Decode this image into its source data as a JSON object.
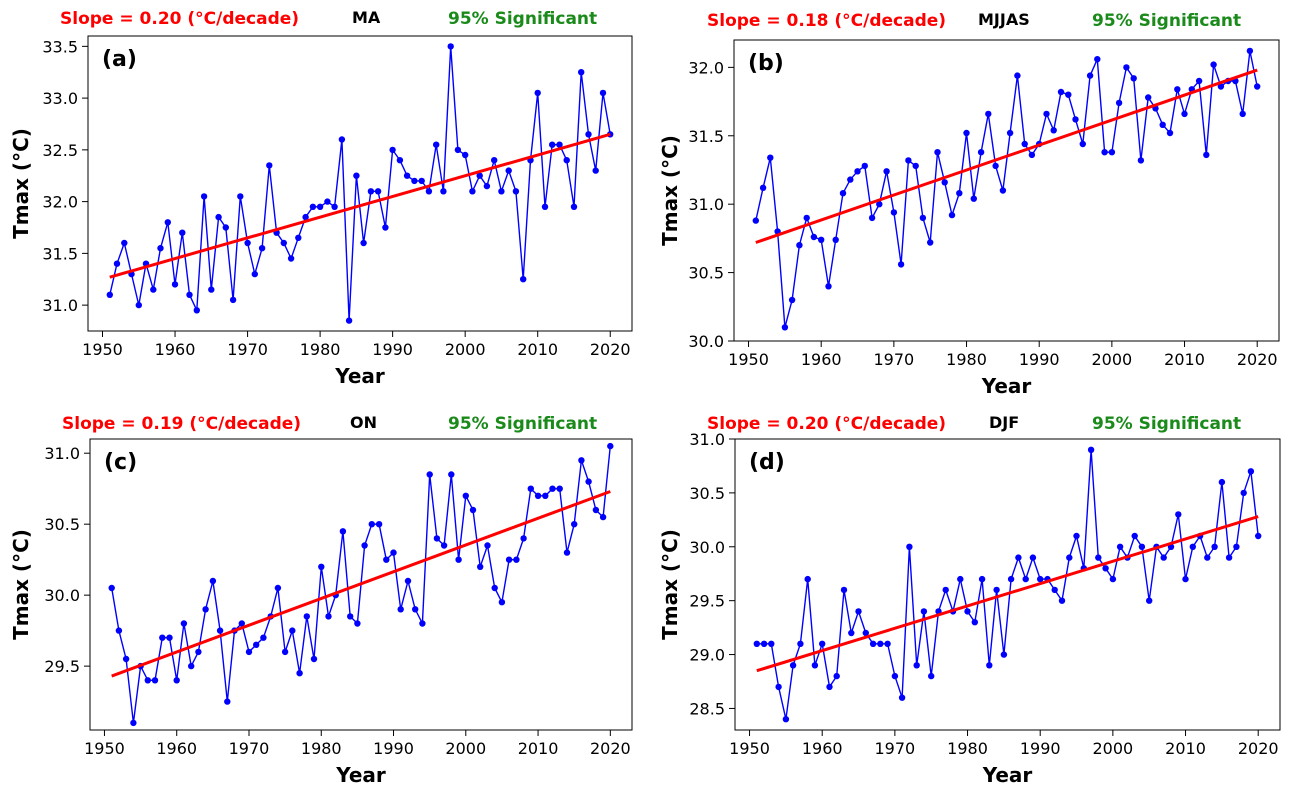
{
  "colors": {
    "slope": "#ff0000",
    "significant": "#1a8a1a",
    "series": "#0000ff",
    "trend": "#ff0000"
  },
  "chart_data": [
    {
      "type": "line",
      "panel": "(a)",
      "season": "MA",
      "slope_text": "Slope = 0.20 (°C/decade)",
      "significance": "95% Significant",
      "xlabel": "Year",
      "ylabel": "Tmax (°C)",
      "xlim": [
        1948,
        2023
      ],
      "ylim": [
        30.75,
        33.6
      ],
      "xticks": [
        1950,
        1960,
        1970,
        1980,
        1990,
        2000,
        2010,
        2020
      ],
      "yticks": [
        31.0,
        31.5,
        32.0,
        32.5,
        33.0,
        33.5
      ],
      "x_start": 1951,
      "values": [
        31.1,
        31.4,
        31.6,
        31.3,
        31.0,
        31.4,
        31.15,
        31.55,
        31.8,
        31.2,
        31.7,
        31.1,
        30.95,
        32.05,
        31.15,
        31.85,
        31.75,
        31.05,
        32.05,
        31.6,
        31.3,
        31.55,
        32.35,
        31.7,
        31.6,
        31.45,
        31.65,
        31.85,
        31.95,
        31.95,
        32.0,
        31.95,
        32.6,
        30.85,
        32.25,
        31.6,
        32.1,
        32.1,
        31.75,
        32.5,
        32.4,
        32.25,
        32.2,
        32.2,
        32.1,
        32.55,
        32.1,
        33.5,
        32.5,
        32.45,
        32.1,
        32.25,
        32.15,
        32.4,
        32.1,
        32.3,
        32.1,
        31.25,
        32.4,
        33.05,
        31.95,
        32.55,
        32.55,
        32.4,
        31.95,
        33.25,
        32.65,
        32.3,
        33.05,
        32.65
      ],
      "trend": {
        "x": [
          1951,
          2020
        ],
        "y": [
          31.27,
          32.65
        ]
      }
    },
    {
      "type": "line",
      "panel": "(b)",
      "season": "MJJAS",
      "slope_text": "Slope = 0.18 (°C/decade)",
      "significance": "95% Significant",
      "xlabel": "Year",
      "ylabel": "Tmax (°C)",
      "xlim": [
        1948,
        2023
      ],
      "ylim": [
        30.0,
        32.2
      ],
      "xticks": [
        1950,
        1960,
        1970,
        1980,
        1990,
        2000,
        2010,
        2020
      ],
      "yticks": [
        30.0,
        30.5,
        31.0,
        31.5,
        32.0
      ],
      "x_start": 1951,
      "values": [
        30.88,
        31.12,
        31.34,
        30.8,
        30.1,
        30.3,
        30.7,
        30.9,
        30.76,
        30.74,
        30.4,
        30.74,
        31.08,
        31.18,
        31.24,
        31.28,
        30.9,
        31.0,
        31.24,
        30.94,
        30.56,
        31.32,
        31.28,
        30.9,
        30.72,
        31.38,
        31.16,
        30.92,
        31.08,
        31.52,
        31.04,
        31.38,
        31.66,
        31.28,
        31.1,
        31.52,
        31.94,
        31.44,
        31.36,
        31.44,
        31.66,
        31.54,
        31.82,
        31.8,
        31.62,
        31.44,
        31.94,
        32.06,
        31.38,
        31.38,
        31.74,
        32.0,
        31.92,
        31.32,
        31.78,
        31.7,
        31.58,
        31.52,
        31.84,
        31.66,
        31.84,
        31.9,
        31.36,
        32.02,
        31.86,
        31.9,
        31.9,
        31.66,
        32.12,
        31.86
      ],
      "trend": {
        "x": [
          1951,
          2020
        ],
        "y": [
          30.72,
          31.98
        ]
      }
    },
    {
      "type": "line",
      "panel": "(c)",
      "season": "ON",
      "slope_text": "Slope = 0.19 (°C/decade)",
      "significance": "95% Significant",
      "xlabel": "Year",
      "ylabel": "Tmax (°C)",
      "xlim": [
        1948,
        2023
      ],
      "ylim": [
        29.05,
        31.1
      ],
      "xticks": [
        1950,
        1960,
        1970,
        1980,
        1990,
        2000,
        2010,
        2020
      ],
      "yticks": [
        29.5,
        30.0,
        30.5,
        31.0
      ],
      "x_start": 1951,
      "values": [
        30.05,
        29.75,
        29.55,
        29.1,
        29.5,
        29.4,
        29.4,
        29.7,
        29.7,
        29.4,
        29.8,
        29.5,
        29.6,
        29.9,
        30.1,
        29.75,
        29.25,
        29.75,
        29.8,
        29.6,
        29.65,
        29.7,
        29.85,
        30.05,
        29.6,
        29.75,
        29.45,
        29.85,
        29.55,
        30.2,
        29.85,
        30.0,
        30.45,
        29.85,
        29.8,
        30.35,
        30.5,
        30.5,
        30.25,
        30.3,
        29.9,
        30.1,
        29.9,
        29.8,
        30.85,
        30.4,
        30.35,
        30.85,
        30.25,
        30.7,
        30.6,
        30.2,
        30.35,
        30.05,
        29.95,
        30.25,
        30.25,
        30.4,
        30.75,
        30.7,
        30.7,
        30.75,
        30.75,
        30.3,
        30.5,
        30.95,
        30.8,
        30.6,
        30.55,
        31.05
      ],
      "trend": {
        "x": [
          1951,
          2020
        ],
        "y": [
          29.43,
          30.73
        ]
      }
    },
    {
      "type": "line",
      "panel": "(d)",
      "season": "DJF",
      "slope_text": "Slope = 0.20 (°C/decade)",
      "significance": "95% Significant",
      "xlabel": "Year",
      "ylabel": "Tmax (°C)",
      "xlim": [
        1948,
        2023
      ],
      "ylim": [
        28.3,
        31.0
      ],
      "xticks": [
        1950,
        1960,
        1970,
        1980,
        1990,
        2000,
        2010,
        2020
      ],
      "yticks": [
        28.5,
        29.0,
        29.5,
        30.0,
        30.5,
        31.0
      ],
      "x_start": 1951,
      "values": [
        29.1,
        29.1,
        29.1,
        28.7,
        28.4,
        28.9,
        29.1,
        29.7,
        28.9,
        29.1,
        28.7,
        28.8,
        29.6,
        29.2,
        29.4,
        29.2,
        29.1,
        29.1,
        29.1,
        28.8,
        28.6,
        30.0,
        28.9,
        29.4,
        28.8,
        29.4,
        29.6,
        29.4,
        29.7,
        29.4,
        29.3,
        29.7,
        28.9,
        29.6,
        29.0,
        29.7,
        29.9,
        29.7,
        29.9,
        29.7,
        29.7,
        29.6,
        29.5,
        29.9,
        30.1,
        29.8,
        30.9,
        29.9,
        29.8,
        29.7,
        30.0,
        29.9,
        30.1,
        30.0,
        29.5,
        30.0,
        29.9,
        30.0,
        30.3,
        29.7,
        30.0,
        30.1,
        29.9,
        30.0,
        30.6,
        29.9,
        30.0,
        30.5,
        30.7,
        30.1
      ],
      "trend": {
        "x": [
          1951,
          2020
        ],
        "y": [
          28.85,
          30.28
        ]
      }
    }
  ]
}
